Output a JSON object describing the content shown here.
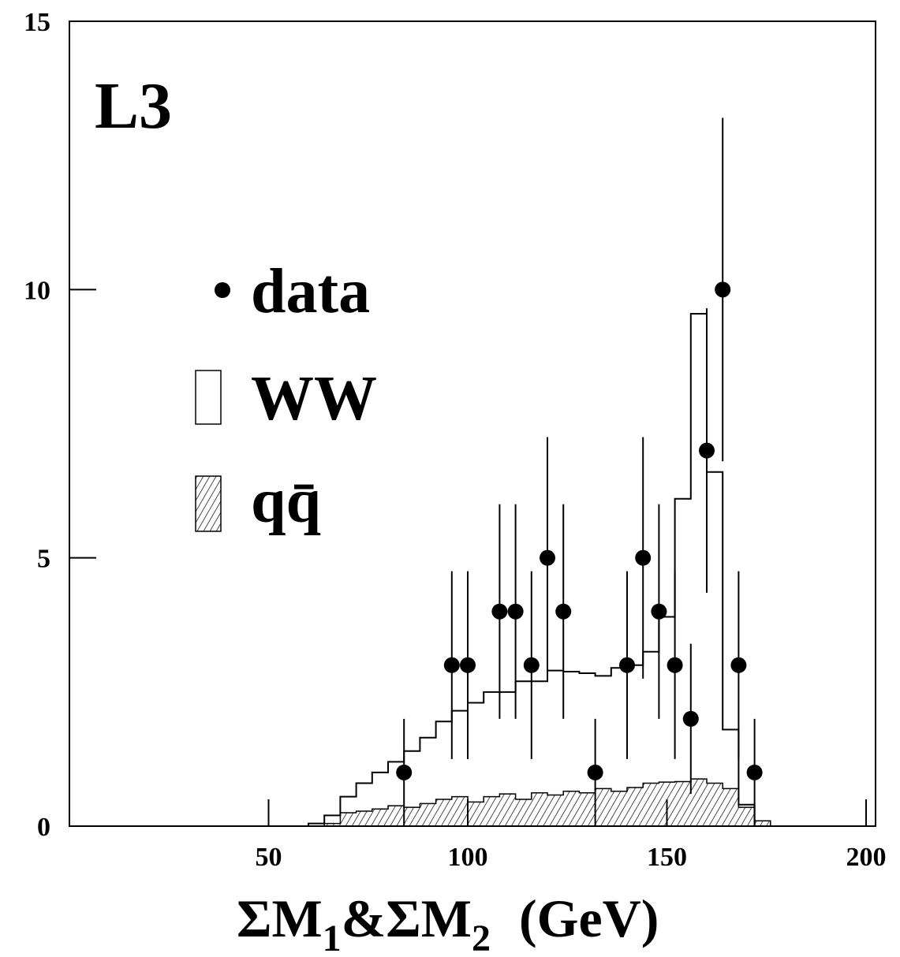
{
  "chart_data": {
    "type": "histogram",
    "experiment_label": "L3",
    "xlabel": "ΣM1&ΣM2 (GeV)",
    "xlabel_parts": {
      "sigma1": "ΣM",
      "sub1": "1",
      "amp": "&",
      "sigma2": "ΣM",
      "sub2": "2",
      "unit": "(GeV)"
    },
    "ylabel": "",
    "xlim": [
      0,
      200
    ],
    "ylim": [
      0,
      15
    ],
    "x_ticks": [
      50,
      100,
      150,
      200
    ],
    "x_tick_labels": [
      "50",
      "100",
      "150",
      "200"
    ],
    "y_ticks": [
      0,
      5,
      10,
      15
    ],
    "y_tick_labels": [
      "0",
      "5",
      "10",
      "15"
    ],
    "legend": {
      "placement": "upper-left",
      "entries": [
        {
          "key": "data",
          "label": "data",
          "marker": "dot"
        },
        {
          "key": "ww",
          "label": "WW",
          "marker": "open-box"
        },
        {
          "key": "qq",
          "label": "qq̄",
          "marker": "hatched-box"
        }
      ]
    },
    "bin_width": 4,
    "ww_histogram": {
      "name": "WW",
      "bin_low_edges": [
        60,
        64,
        68,
        72,
        76,
        80,
        84,
        88,
        92,
        96,
        100,
        104,
        108,
        112,
        116,
        120,
        124,
        128,
        132,
        136,
        140,
        144,
        148,
        152,
        156,
        160,
        164,
        168,
        172
      ],
      "values": [
        0.05,
        0.2,
        0.55,
        0.8,
        1.0,
        1.2,
        1.4,
        1.65,
        1.95,
        2.15,
        2.3,
        2.5,
        2.5,
        2.7,
        2.7,
        2.9,
        2.88,
        2.85,
        2.8,
        2.95,
        3.0,
        3.25,
        3.9,
        6.1,
        9.55,
        6.6,
        1.8,
        0.4,
        0.0
      ]
    },
    "qq_histogram": {
      "name": "qq̄",
      "bin_low_edges": [
        60,
        64,
        68,
        72,
        76,
        80,
        84,
        88,
        92,
        96,
        100,
        104,
        108,
        112,
        116,
        120,
        124,
        128,
        132,
        136,
        140,
        144,
        148,
        152,
        156,
        160,
        164,
        168,
        172
      ],
      "values": [
        0.0,
        0.05,
        0.25,
        0.28,
        0.32,
        0.38,
        0.35,
        0.42,
        0.5,
        0.55,
        0.45,
        0.55,
        0.6,
        0.5,
        0.62,
        0.58,
        0.65,
        0.62,
        0.7,
        0.65,
        0.72,
        0.8,
        0.82,
        0.83,
        0.88,
        0.8,
        0.7,
        0.35,
        0.1
      ]
    },
    "data_points": [
      {
        "x": 84,
        "y": 1,
        "err": 1.0
      },
      {
        "x": 96,
        "y": 3,
        "err": 1.75
      },
      {
        "x": 100,
        "y": 3,
        "err": 1.75
      },
      {
        "x": 108,
        "y": 4,
        "err": 2.0
      },
      {
        "x": 112,
        "y": 4,
        "err": 2.0
      },
      {
        "x": 116,
        "y": 3,
        "err": 1.75
      },
      {
        "x": 120,
        "y": 5,
        "err": 2.25
      },
      {
        "x": 124,
        "y": 4,
        "err": 2.0
      },
      {
        "x": 132,
        "y": 1,
        "err": 1.0
      },
      {
        "x": 140,
        "y": 3,
        "err": 1.75
      },
      {
        "x": 144,
        "y": 5,
        "err": 2.25
      },
      {
        "x": 148,
        "y": 4,
        "err": 2.0
      },
      {
        "x": 152,
        "y": 3,
        "err": 1.75
      },
      {
        "x": 156,
        "y": 2,
        "err": 1.4
      },
      {
        "x": 160,
        "y": 7,
        "err": 2.65
      },
      {
        "x": 164,
        "y": 10,
        "err": 3.2
      },
      {
        "x": 168,
        "y": 3,
        "err": 1.75
      },
      {
        "x": 172,
        "y": 1,
        "err": 1.0
      }
    ],
    "colors": {
      "line": "#000000",
      "background": "#ffffff"
    }
  }
}
